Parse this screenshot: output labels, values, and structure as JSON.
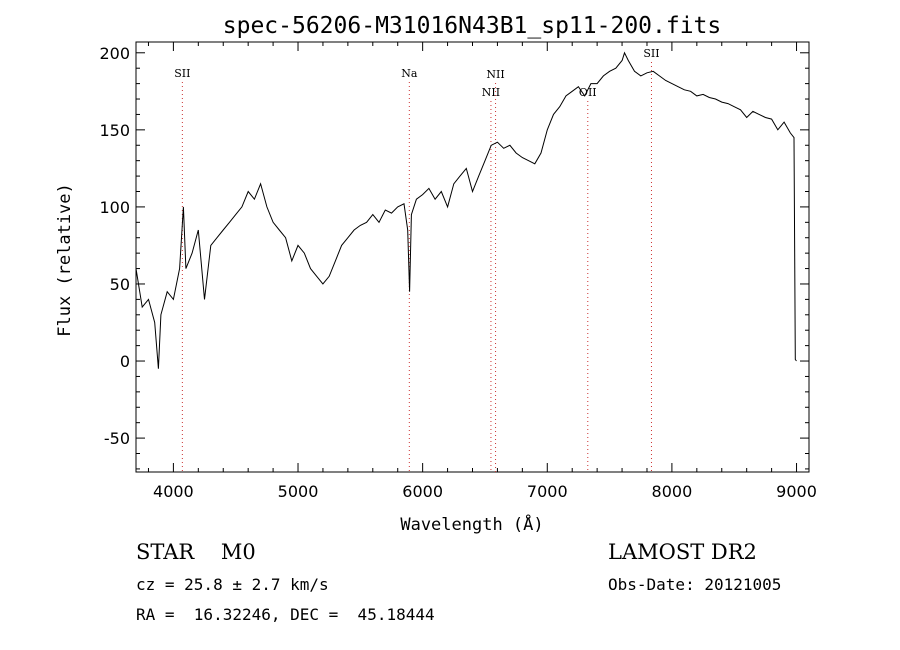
{
  "chart_data": {
    "type": "line",
    "title": "spec-56206-M31016N43B1_sp11-200.fits",
    "xlabel": "Wavelength (Å)",
    "ylabel": "Flux (relative)",
    "xlim": [
      3700,
      9100
    ],
    "ylim": [
      -72,
      207
    ],
    "xticks": [
      4000,
      5000,
      6000,
      7000,
      8000,
      9000
    ],
    "yticks": [
      -50,
      0,
      50,
      100,
      150,
      200
    ],
    "grid": false,
    "series": [
      {
        "x": [
          3700,
          3750,
          3800,
          3850,
          3880,
          3900,
          3950,
          4000,
          4050,
          4080,
          4100,
          4150,
          4200,
          4250,
          4300,
          4350,
          4400,
          4450,
          4500,
          4550,
          4600,
          4650,
          4700,
          4750,
          4800,
          4850,
          4900,
          4950,
          5000,
          5050,
          5100,
          5150,
          5200,
          5250,
          5300,
          5350,
          5400,
          5450,
          5500,
          5550,
          5600,
          5650,
          5700,
          5750,
          5800,
          5850,
          5880,
          5895,
          5910,
          5950,
          6000,
          6050,
          6100,
          6150,
          6200,
          6250,
          6300,
          6350,
          6400,
          6450,
          6500,
          6550,
          6600,
          6650,
          6700,
          6750,
          6800,
          6850,
          6900,
          6950,
          7000,
          7050,
          7100,
          7150,
          7200,
          7250,
          7300,
          7350,
          7400,
          7450,
          7500,
          7550,
          7600,
          7620,
          7650,
          7700,
          7750,
          7800,
          7850,
          7900,
          7950,
          8000,
          8050,
          8100,
          8150,
          8200,
          8250,
          8300,
          8350,
          8400,
          8450,
          8500,
          8550,
          8600,
          8650,
          8700,
          8750,
          8800,
          8850,
          8900,
          8950,
          8980,
          8990,
          9000
        ],
        "y": [
          60,
          35,
          40,
          25,
          -5,
          30,
          45,
          40,
          60,
          100,
          60,
          70,
          85,
          40,
          75,
          80,
          85,
          90,
          95,
          100,
          110,
          105,
          115,
          100,
          90,
          85,
          80,
          65,
          75,
          70,
          60,
          55,
          50,
          55,
          65,
          75,
          80,
          85,
          88,
          90,
          95,
          90,
          98,
          96,
          100,
          102,
          85,
          45,
          95,
          105,
          108,
          112,
          105,
          110,
          100,
          115,
          120,
          125,
          110,
          120,
          130,
          140,
          142,
          138,
          140,
          135,
          132,
          130,
          128,
          135,
          150,
          160,
          165,
          172,
          175,
          178,
          172,
          180,
          180,
          185,
          188,
          190,
          195,
          200,
          195,
          188,
          185,
          187,
          188,
          185,
          182,
          180,
          178,
          176,
          175,
          172,
          173,
          171,
          170,
          168,
          167,
          165,
          163,
          158,
          162,
          160,
          158,
          157,
          150,
          155,
          148,
          145,
          1,
          0
        ]
      }
    ],
    "annotations": [
      {
        "label": "SII",
        "x": 4072,
        "level": 1
      },
      {
        "label": "Na",
        "x": 5893,
        "level": 1
      },
      {
        "label": "NII",
        "x": 6585,
        "level": 2
      },
      {
        "label": "NII",
        "x": 6548,
        "level": 3
      },
      {
        "label": "OII",
        "x": 7325,
        "level": 3
      },
      {
        "label": "SII",
        "x": 7836,
        "level": 0
      }
    ]
  },
  "info": {
    "object_line": "STAR    M0",
    "survey": "LAMOST DR2",
    "cz_line": "cz = 25.8 ± 2.7 km/s",
    "obs_date": "Obs-Date: 20121005",
    "coords": "RA =  16.32246, DEC =  45.18444"
  }
}
